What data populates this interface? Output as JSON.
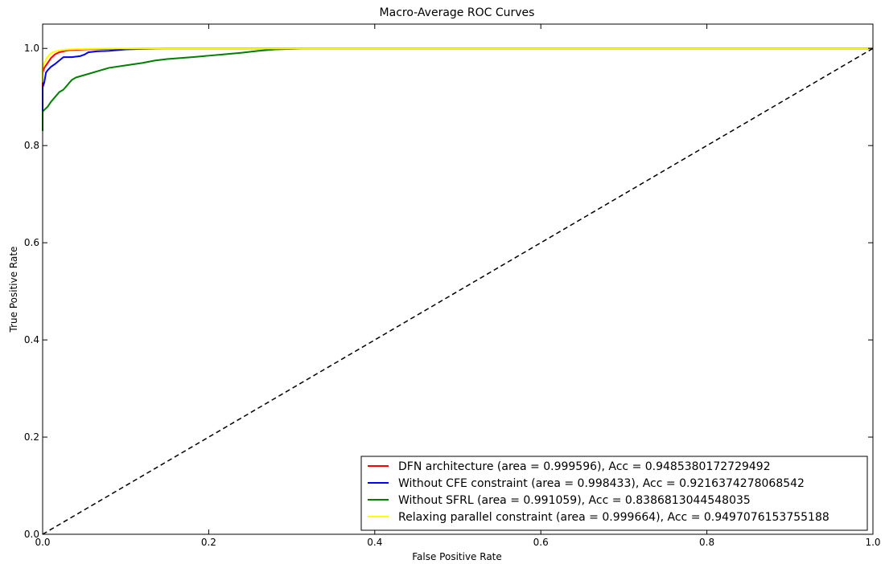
{
  "chart_data": {
    "type": "line",
    "title": "Macro-Average ROC Curves",
    "xlabel": "False Positive Rate",
    "ylabel": "True Positive Rate",
    "xlim": [
      0.0,
      1.0
    ],
    "ylim": [
      0.0,
      1.05
    ],
    "xticks": [
      0.0,
      0.2,
      0.4,
      0.6,
      0.8,
      1.0
    ],
    "yticks": [
      0.0,
      0.2,
      0.4,
      0.6,
      0.8,
      1.0
    ],
    "xtick_labels": [
      "0.0",
      "0.2",
      "0.4",
      "0.6",
      "0.8",
      "1.0"
    ],
    "ytick_labels": [
      "0.0",
      "0.2",
      "0.4",
      "0.6",
      "0.8",
      "1.0"
    ],
    "grid": false,
    "legend_position": "lower-right",
    "series": [
      {
        "name": "DFN architecture (area =  0.999596), Acc = 0.9485380172729492",
        "color": "#ff0000",
        "x": [
          0.0,
          0.0,
          0.002,
          0.004,
          0.006,
          0.01,
          0.015,
          0.02,
          0.03,
          0.05,
          0.08,
          0.12,
          1.0
        ],
        "y": [
          0.92,
          0.95,
          0.96,
          0.965,
          0.97,
          0.98,
          0.988,
          0.992,
          0.996,
          0.998,
          0.999,
          1.0,
          1.0
        ]
      },
      {
        "name": "Without CFE constraint (area =  0.998433), Acc = 0.9216374278068542",
        "color": "#0000ff",
        "x": [
          0.0,
          0.0,
          0.002,
          0.004,
          0.006,
          0.01,
          0.015,
          0.02,
          0.025,
          0.035,
          0.045,
          0.05,
          0.055,
          0.065,
          0.08,
          0.1,
          0.12,
          0.15,
          1.0
        ],
        "y": [
          0.87,
          0.92,
          0.93,
          0.95,
          0.955,
          0.962,
          0.968,
          0.975,
          0.982,
          0.982,
          0.984,
          0.987,
          0.992,
          0.994,
          0.995,
          0.998,
          0.999,
          1.0,
          1.0
        ]
      },
      {
        "name": "Without SFRL  (area =  0.991059), Acc = 0.8386813044548035",
        "color": "#008000",
        "x": [
          0.0,
          0.0,
          0.003,
          0.006,
          0.01,
          0.015,
          0.02,
          0.025,
          0.03,
          0.035,
          0.04,
          0.05,
          0.06,
          0.07,
          0.08,
          0.1,
          0.12,
          0.135,
          0.15,
          0.18,
          0.2,
          0.22,
          0.24,
          0.26,
          0.28,
          0.3,
          0.32,
          1.0
        ],
        "y": [
          0.83,
          0.87,
          0.875,
          0.88,
          0.89,
          0.9,
          0.91,
          0.915,
          0.925,
          0.935,
          0.94,
          0.945,
          0.95,
          0.955,
          0.96,
          0.965,
          0.97,
          0.975,
          0.978,
          0.982,
          0.985,
          0.988,
          0.991,
          0.995,
          0.998,
          0.999,
          1.0,
          1.0
        ]
      },
      {
        "name": "Relaxing parallel constraint (area =  0.999664), Acc = 0.9497076153755188",
        "color": "#ffff00",
        "x": [
          0.0,
          0.0,
          0.002,
          0.005,
          0.008,
          0.012,
          0.02,
          0.03,
          0.05,
          0.08,
          1.0
        ],
        "y": [
          0.93,
          0.96,
          0.97,
          0.98,
          0.987,
          0.992,
          0.996,
          0.998,
          0.999,
          1.0,
          1.0
        ]
      },
      {
        "name": "",
        "color": "#000000",
        "dashed": true,
        "x": [
          0.0,
          1.0
        ],
        "y": [
          0.0,
          1.0
        ]
      }
    ]
  }
}
